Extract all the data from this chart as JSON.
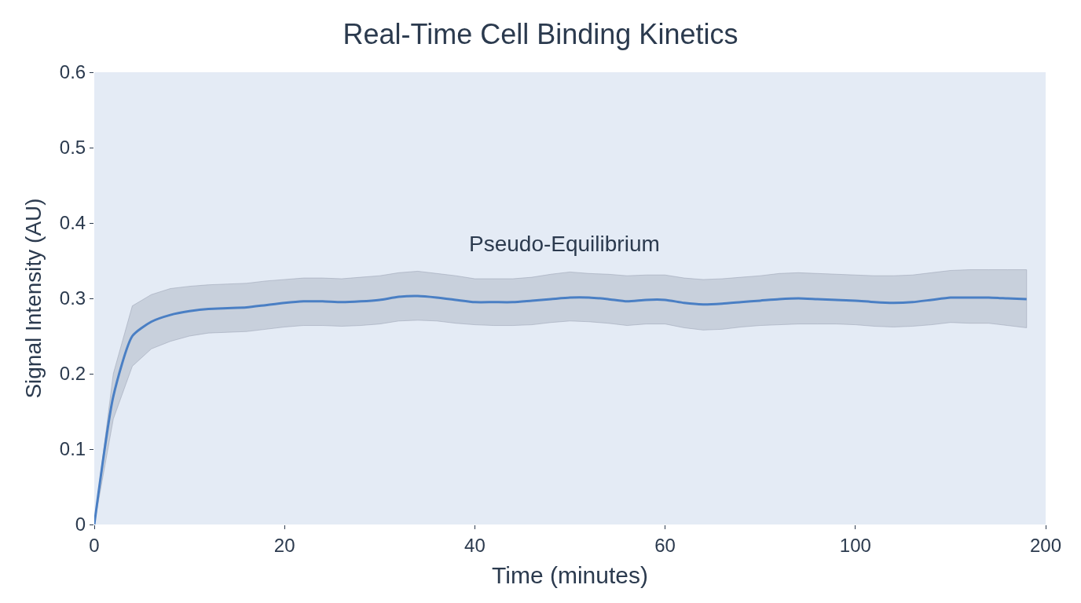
{
  "chart_data": {
    "type": "line",
    "title": "Real-Time Cell Binding Kinetics",
    "xlabel": "Time (minutes)",
    "ylabel": "Signal Intensity (AU)",
    "categories": [
      "0",
      null,
      null,
      null,
      null,
      null,
      null,
      null,
      null,
      null,
      "20",
      null,
      null,
      null,
      null,
      null,
      null,
      null,
      null,
      null,
      "40",
      null,
      null,
      null,
      null,
      null,
      null,
      null,
      null,
      null,
      "60",
      null,
      null,
      null,
      null,
      null,
      null,
      null,
      null,
      null,
      "100",
      null,
      null,
      null,
      null,
      null,
      null,
      null,
      null,
      null,
      "200"
    ],
    "series": [
      {
        "color": "#4a7fc4",
        "values": [
          0,
          0.17,
          0.25,
          0.269,
          0.278,
          0.283,
          0.286,
          0.287,
          0.288,
          0.291,
          0.294,
          0.296,
          0.296,
          0.295,
          0.296,
          0.298,
          0.302,
          0.303,
          0.301,
          0.298,
          0.295,
          0.295,
          0.295,
          0.297,
          0.299,
          0.301,
          0.301,
          0.299,
          0.296,
          0.298,
          0.298,
          0.294,
          0.292,
          0.293,
          0.295,
          0.297,
          0.299,
          0.3,
          0.299,
          0.298,
          0.297,
          0.295,
          0.294,
          0.295,
          0.298,
          0.301,
          0.301,
          0.301,
          0.3,
          0.299,
          null
        ],
        "lower": [
          0,
          0.14,
          0.21,
          0.233,
          0.243,
          0.25,
          0.254,
          0.255,
          0.256,
          0.259,
          0.262,
          0.264,
          0.264,
          0.263,
          0.264,
          0.266,
          0.27,
          0.271,
          0.27,
          0.267,
          0.265,
          0.264,
          0.264,
          0.265,
          0.268,
          0.27,
          0.269,
          0.267,
          0.264,
          0.266,
          0.266,
          0.261,
          0.258,
          0.259,
          0.262,
          0.264,
          0.265,
          0.266,
          0.266,
          0.266,
          0.265,
          0.263,
          0.262,
          0.263,
          0.265,
          0.268,
          0.267,
          0.267,
          0.264,
          0.261,
          null
        ],
        "upper": [
          0,
          0.2,
          0.29,
          0.305,
          0.313,
          0.316,
          0.318,
          0.319,
          0.32,
          0.323,
          0.325,
          0.327,
          0.327,
          0.326,
          0.328,
          0.33,
          0.334,
          0.336,
          0.333,
          0.33,
          0.326,
          0.326,
          0.326,
          0.328,
          0.332,
          0.335,
          0.333,
          0.332,
          0.33,
          0.331,
          0.331,
          0.327,
          0.325,
          0.326,
          0.328,
          0.33,
          0.333,
          0.334,
          0.333,
          0.332,
          0.331,
          0.33,
          0.33,
          0.331,
          0.334,
          0.337,
          0.338,
          0.338,
          0.338,
          0.338,
          null
        ]
      }
    ],
    "ylim": [
      0,
      0.6
    ],
    "yticks": [
      {
        "value": 0,
        "label": "0"
      },
      0.1,
      0.2,
      0.3,
      0.4,
      0.5,
      0.6
    ],
    "annotations": [
      "Pseudo-Equilibrium"
    ],
    "grid": false,
    "marker": "none",
    "line_style": "solid"
  }
}
